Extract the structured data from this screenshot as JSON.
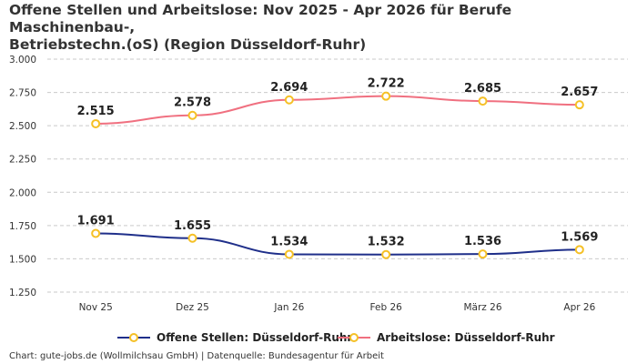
{
  "title_lines": [
    "Offene Stellen und Arbeitslose: Nov 2025 - Apr 2026 für Berufe Maschinenbau-,",
    "Betriebstechn.(oS) (Region Düsseldorf-Ruhr)"
  ],
  "source": "Chart: gute-jobs.de (Wollmilchsau GmbH) | Datenquelle: Bundesagentur für Arbeit",
  "chart_data": {
    "type": "line",
    "categories": [
      "Nov 25",
      "Dez 25",
      "Jan 26",
      "Feb 26",
      "März 26",
      "Apr 26"
    ],
    "series": [
      {
        "name": "Offene Stellen: Düsseldorf-Ruhr",
        "color": "#1f2f8a",
        "values": [
          1691,
          1655,
          1534,
          1532,
          1536,
          1569
        ],
        "labels": [
          "1.691",
          "1.655",
          "1.534",
          "1.532",
          "1.536",
          "1.569"
        ]
      },
      {
        "name": "Arbeitslose: Düsseldorf-Ruhr",
        "color": "#f07080",
        "values": [
          2515,
          2578,
          2694,
          2722,
          2685,
          2657
        ],
        "labels": [
          "2.515",
          "2.578",
          "2.694",
          "2.722",
          "2.685",
          "2.657"
        ]
      }
    ],
    "marker_color": "#f5c026",
    "ylim": [
      1250,
      3000
    ],
    "yticks": [
      1250,
      1500,
      1750,
      2000,
      2250,
      2500,
      2750,
      3000
    ],
    "ytick_labels": [
      "1.250",
      "1.500",
      "1.750",
      "2.000",
      "2.250",
      "2.500",
      "2.750",
      "3.000"
    ],
    "grid": true,
    "grid_style": "dashed",
    "legend_position": "bottom"
  }
}
